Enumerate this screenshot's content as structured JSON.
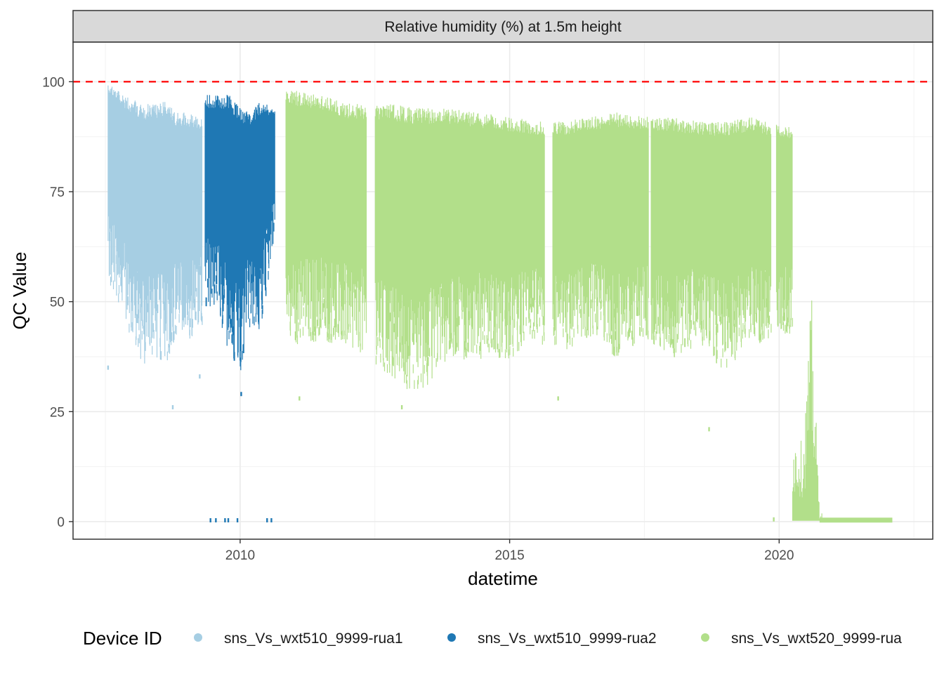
{
  "chart_data": {
    "type": "scatter",
    "facet_title": "Relative humidity (%) at 1.5m height",
    "xlabel": "datetime",
    "ylabel": "QC Value",
    "xlim": [
      2006.9,
      2022.85
    ],
    "ylim": [
      -4,
      109
    ],
    "x_ticks": [
      2010,
      2015,
      2020
    ],
    "x_tick_labels": [
      "2010",
      "2015",
      "2020"
    ],
    "y_ticks": [
      0,
      25,
      50,
      75,
      100
    ],
    "y_tick_labels": [
      "0",
      "25",
      "50",
      "75",
      "100"
    ],
    "reference_line": {
      "y": 100,
      "style": "dashed",
      "color": "#ff0000"
    },
    "grid": true,
    "legend": {
      "title": "Device ID",
      "position": "bottom"
    },
    "series": [
      {
        "name": "sns_Vs_wxt510_9999-rua1",
        "color": "#a6cee3",
        "x_range": [
          2007.55,
          2009.3
        ],
        "values": [
          {
            "x": 2007.6,
            "low": 53,
            "high": 100
          },
          {
            "x": 2007.8,
            "low": 47,
            "high": 97
          },
          {
            "x": 2008.0,
            "low": 41,
            "high": 96
          },
          {
            "x": 2008.2,
            "low": 35,
            "high": 95
          },
          {
            "x": 2008.4,
            "low": 37,
            "high": 95
          },
          {
            "x": 2008.6,
            "low": 35,
            "high": 96
          },
          {
            "x": 2008.8,
            "low": 42,
            "high": 93
          },
          {
            "x": 2009.0,
            "low": 41,
            "high": 93
          },
          {
            "x": 2009.2,
            "low": 43,
            "high": 92
          }
        ],
        "outliers": [
          {
            "x": 2007.55,
            "y": 35
          },
          {
            "x": 2008.75,
            "y": 26
          },
          {
            "x": 2009.25,
            "y": 33
          }
        ]
      },
      {
        "name": "sns_Vs_wxt510_9999-rua2",
        "color": "#1f78b4",
        "x_range": [
          2009.35,
          2010.65
        ],
        "values": [
          {
            "x": 2009.4,
            "low": 47,
            "high": 97
          },
          {
            "x": 2009.6,
            "low": 46,
            "high": 97
          },
          {
            "x": 2009.8,
            "low": 38,
            "high": 97
          },
          {
            "x": 2010.0,
            "low": 34,
            "high": 94
          },
          {
            "x": 2010.2,
            "low": 45,
            "high": 93
          },
          {
            "x": 2010.4,
            "low": 43,
            "high": 96
          },
          {
            "x": 2010.6,
            "low": 63,
            "high": 94
          }
        ],
        "outliers": [
          {
            "x": 2010.02,
            "y": 29
          },
          {
            "x": 2009.45,
            "y": 0.3
          },
          {
            "x": 2009.55,
            "y": 0.3
          },
          {
            "x": 2009.72,
            "y": 0.3
          },
          {
            "x": 2009.78,
            "y": 0.3
          },
          {
            "x": 2009.95,
            "y": 0.3
          },
          {
            "x": 2010.5,
            "y": 0.3
          },
          {
            "x": 2010.58,
            "y": 0.3
          }
        ]
      },
      {
        "name": "sns_Vs_wxt520_9999-rua",
        "color": "#b2df8a",
        "x_range": [
          2010.85,
          2022.1
        ],
        "values": [
          {
            "x": 2011.0,
            "low": 40,
            "high": 98
          },
          {
            "x": 2011.5,
            "low": 41,
            "high": 97
          },
          {
            "x": 2012.0,
            "low": 40,
            "high": 95
          },
          {
            "x": 2012.8,
            "low": 33,
            "high": 95
          },
          {
            "x": 2013.3,
            "low": 28,
            "high": 94
          },
          {
            "x": 2013.8,
            "low": 36,
            "high": 94
          },
          {
            "x": 2014.4,
            "low": 37,
            "high": 93
          },
          {
            "x": 2015.0,
            "low": 37,
            "high": 92
          },
          {
            "x": 2015.5,
            "low": 40,
            "high": 91
          },
          {
            "x": 2016.0,
            "low": 38,
            "high": 91
          },
          {
            "x": 2016.5,
            "low": 42,
            "high": 92
          },
          {
            "x": 2017.0,
            "low": 37,
            "high": 93
          },
          {
            "x": 2017.5,
            "low": 42,
            "high": 92
          },
          {
            "x": 2018.0,
            "low": 37,
            "high": 92
          },
          {
            "x": 2018.5,
            "low": 40,
            "high": 91
          },
          {
            "x": 2019.0,
            "low": 34,
            "high": 91
          },
          {
            "x": 2019.5,
            "low": 40,
            "high": 92
          },
          {
            "x": 2020.0,
            "low": 42,
            "high": 90
          }
        ],
        "outliers": [
          {
            "x": 2011.1,
            "y": 28
          },
          {
            "x": 2013.0,
            "y": 26
          },
          {
            "x": 2015.9,
            "y": 28
          },
          {
            "x": 2018.7,
            "y": 21
          },
          {
            "x": 2019.9,
            "y": 0.5
          }
        ],
        "tail": [
          {
            "x": 2020.25,
            "low": 0.3,
            "high": 20
          },
          {
            "x": 2020.45,
            "low": 0.3,
            "high": 18
          },
          {
            "x": 2020.6,
            "low": 0.3,
            "high": 52
          },
          {
            "x": 2020.75,
            "low": 0.3,
            "high": 2
          },
          {
            "x": 2022.1,
            "low": 0.3,
            "high": 0.8
          }
        ]
      }
    ]
  }
}
